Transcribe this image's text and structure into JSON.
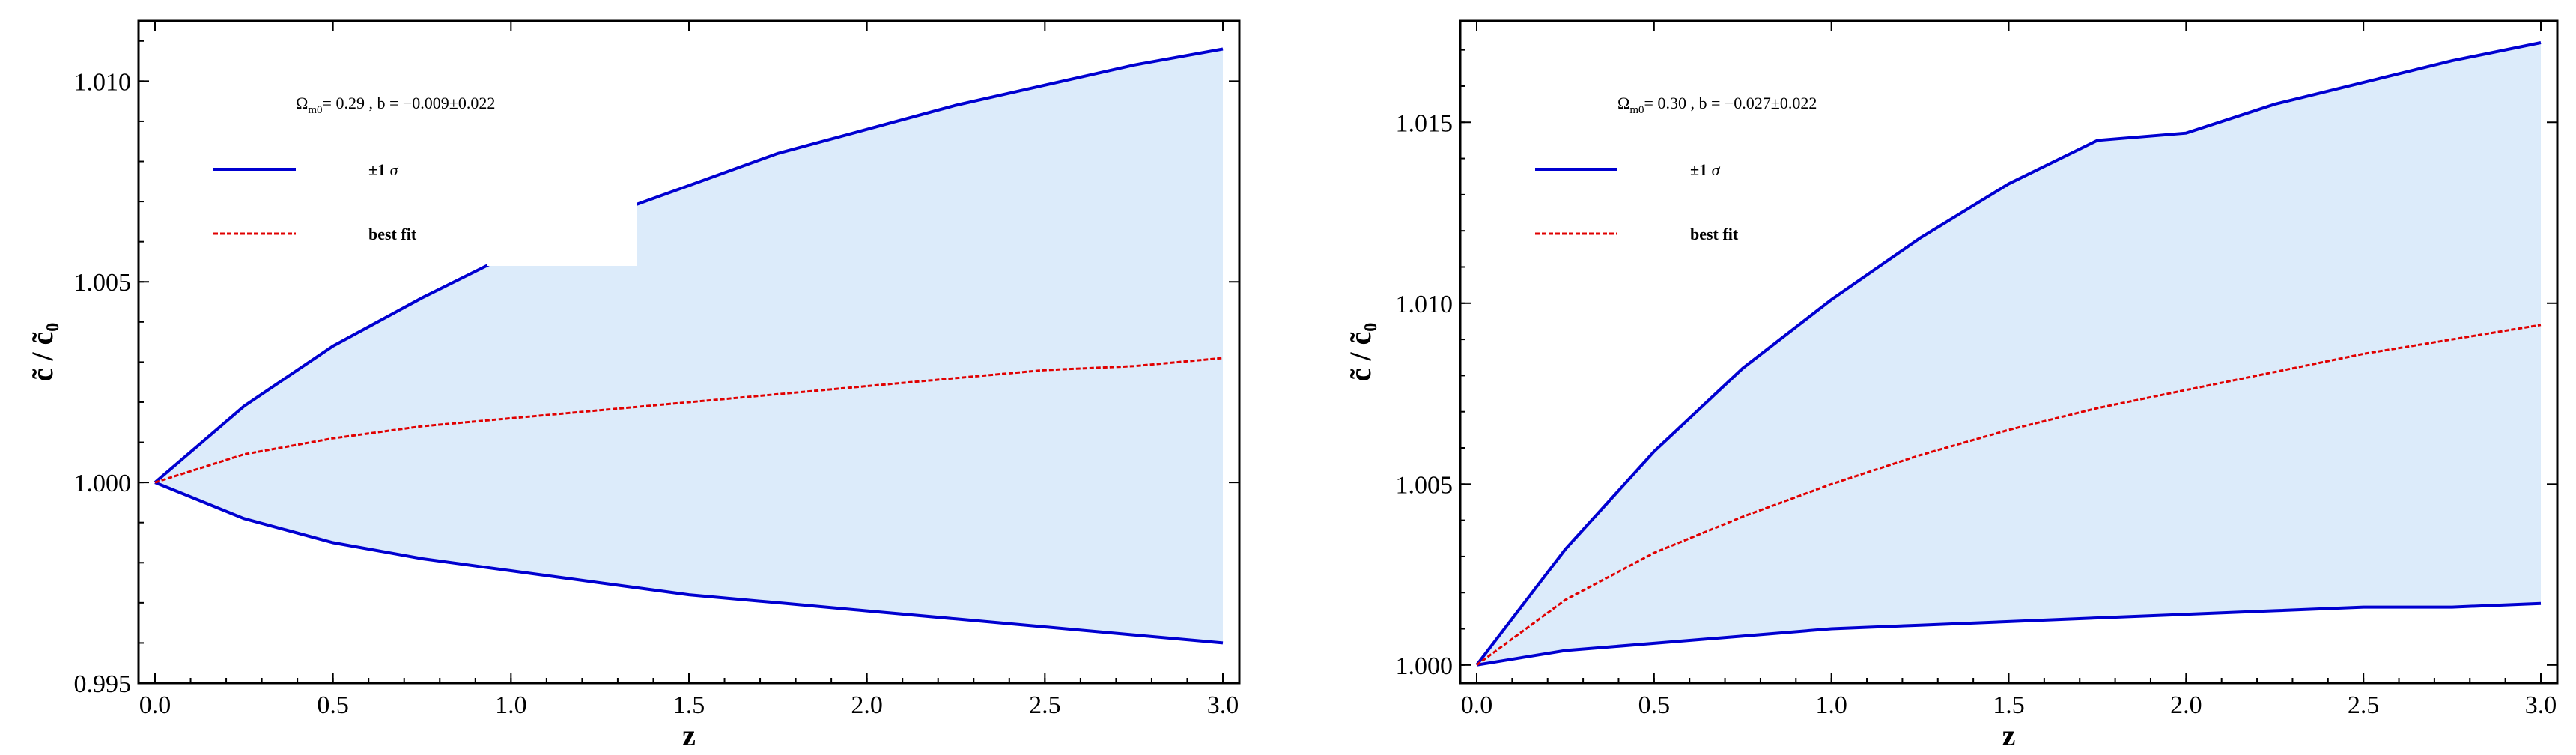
{
  "chart_data": [
    {
      "type": "line",
      "xlabel": "z",
      "ylabel": "c̃ / c̃₀",
      "xlim": [
        0,
        3
      ],
      "ylim": [
        0.995,
        1.0115
      ],
      "xticks": [
        0.0,
        0.5,
        1.0,
        1.5,
        2.0,
        2.5,
        3.0
      ],
      "xtick_labels": [
        "0.0",
        "0.5",
        "1.0",
        "1.5",
        "2.0",
        "2.5",
        "3.0"
      ],
      "yticks": [
        0.995,
        1.0,
        1.005,
        1.01
      ],
      "ytick_labels": [
        "0.995",
        "1.000",
        "1.005",
        "1.010"
      ],
      "annotation": {
        "omega": "Ω",
        "omega_sub": "m0",
        "rest": "= 0.29 , b = −0.009±0.022"
      },
      "legend": [
        {
          "label": "±1 ",
          "label_sym": "σ",
          "color": "#0000d0",
          "style": "solid"
        },
        {
          "label": "best fit",
          "color": "#e00000",
          "style": "dashed"
        }
      ],
      "band_color": "#dcebfa",
      "series": [
        {
          "name": "±1 σ",
          "role": "upper",
          "x": [
            0,
            0.25,
            0.5,
            0.75,
            1.0,
            1.25,
            1.5,
            1.75,
            2.0,
            2.25,
            2.5,
            2.75,
            3.0
          ],
          "y": [
            1.0,
            1.0019,
            1.0034,
            1.0046,
            1.0057,
            1.0066,
            1.0074,
            1.0082,
            1.0088,
            1.0094,
            1.0099,
            1.0104,
            1.0108
          ]
        },
        {
          "name": "best fit",
          "role": "best",
          "x": [
            0,
            0.25,
            0.5,
            0.75,
            1.0,
            1.25,
            1.5,
            1.75,
            2.0,
            2.25,
            2.5,
            2.75,
            3.0
          ],
          "y": [
            1.0,
            1.0007,
            1.0011,
            1.0014,
            1.0016,
            1.0018,
            1.002,
            1.0022,
            1.0024,
            1.0026,
            1.0028,
            1.0029,
            1.0031
          ]
        },
        {
          "name": "±1 σ",
          "role": "lower",
          "x": [
            0,
            0.25,
            0.5,
            0.75,
            1.0,
            1.25,
            1.5,
            1.75,
            2.0,
            2.25,
            2.5,
            2.75,
            3.0
          ],
          "y": [
            1.0,
            0.9991,
            0.9985,
            0.9981,
            0.9978,
            0.9975,
            0.9972,
            0.997,
            0.9968,
            0.9966,
            0.9964,
            0.9962,
            0.996
          ]
        }
      ]
    },
    {
      "type": "line",
      "xlabel": "z",
      "ylabel": "c̃ / c̃₀",
      "xlim": [
        0,
        3
      ],
      "ylim": [
        0.9995,
        1.0178
      ],
      "xticks": [
        0.0,
        0.5,
        1.0,
        1.5,
        2.0,
        2.5,
        3.0
      ],
      "xtick_labels": [
        "0.0",
        "0.5",
        "1.0",
        "1.5",
        "2.0",
        "2.5",
        "3.0"
      ],
      "yticks": [
        1.0,
        1.005,
        1.01,
        1.015
      ],
      "ytick_labels": [
        "1.000",
        "1.005",
        "1.010",
        "1.015"
      ],
      "annotation": {
        "omega": "Ω",
        "omega_sub": "m0",
        "rest": "= 0.30 , b = −0.027±0.022"
      },
      "legend": [
        {
          "label": "±1 ",
          "label_sym": "σ",
          "color": "#0000d0",
          "style": "solid"
        },
        {
          "label": "best fit",
          "color": "#e00000",
          "style": "dashed"
        }
      ],
      "band_color": "#dcebfa",
      "series": [
        {
          "name": "±1 σ",
          "role": "upper",
          "x": [
            0,
            0.25,
            0.5,
            0.75,
            1.0,
            1.25,
            1.5,
            1.75,
            2.0,
            2.25,
            2.5,
            2.75,
            3.0
          ],
          "y": [
            1.0,
            1.0032,
            1.0059,
            1.0082,
            1.0101,
            1.0118,
            1.0133,
            1.0145,
            1.0147,
            1.0155,
            1.0161,
            1.0167,
            1.0172
          ]
        },
        {
          "name": "best fit",
          "role": "best",
          "x": [
            0,
            0.25,
            0.5,
            0.75,
            1.0,
            1.25,
            1.5,
            1.75,
            2.0,
            2.25,
            2.5,
            2.75,
            3.0
          ],
          "y": [
            1.0,
            1.0018,
            1.0031,
            1.0041,
            1.005,
            1.0058,
            1.0065,
            1.0071,
            1.0076,
            1.0081,
            1.0086,
            1.009,
            1.0094
          ]
        },
        {
          "name": "±1 σ",
          "role": "lower",
          "x": [
            0,
            0.25,
            0.5,
            0.75,
            1.0,
            1.25,
            1.5,
            1.75,
            2.0,
            2.25,
            2.5,
            2.75,
            3.0
          ],
          "y": [
            1.0,
            1.0004,
            1.0006,
            1.0008,
            1.001,
            1.0011,
            1.0012,
            1.0013,
            1.0014,
            1.0015,
            1.0016,
            1.0016,
            1.0017
          ]
        }
      ]
    }
  ]
}
